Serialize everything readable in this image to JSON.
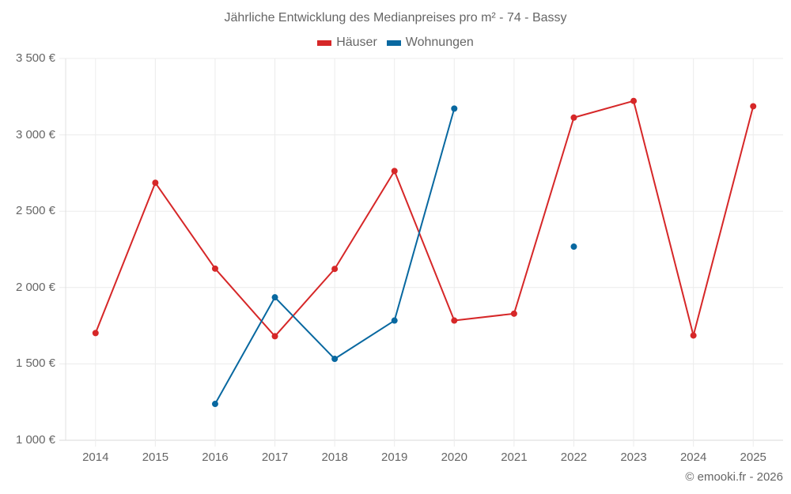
{
  "chart_data": {
    "type": "line",
    "title": "Jährliche Entwicklung des Medianpreises pro m² - 74 - Bassy",
    "xlabel": "",
    "ylabel": "",
    "categories": [
      "2014",
      "2015",
      "2016",
      "2017",
      "2018",
      "2019",
      "2020",
      "2021",
      "2022",
      "2023",
      "2024",
      "2025"
    ],
    "series": [
      {
        "name": "Häuser",
        "color": "#d62728",
        "values": [
          1702,
          2686,
          2124,
          1681,
          2122,
          2763,
          1784,
          1829,
          3113,
          3222,
          1686,
          3187
        ]
      },
      {
        "name": "Wohnungen",
        "color": "#0868a0",
        "values": [
          null,
          null,
          1238,
          1936,
          1533,
          1784,
          3172,
          null,
          2268,
          null,
          null,
          null
        ]
      }
    ],
    "ylim": [
      1000,
      3500
    ],
    "yticks": [
      1000,
      1500,
      2000,
      2500,
      3000,
      3500
    ],
    "ytick_labels": [
      "1 000 €",
      "1 500 €",
      "2 000 €",
      "2 500 €",
      "3 000 €",
      "3 500 €"
    ],
    "grid": true,
    "legend_position": "top-center"
  },
  "title": "Jährliche Entwicklung des Medianpreises pro m² - 74 - Bassy",
  "legend": [
    {
      "label": "Häuser",
      "color": "#d62728"
    },
    {
      "label": "Wohnungen",
      "color": "#0868a0"
    }
  ],
  "credit": "© emooki.fr - 2026"
}
